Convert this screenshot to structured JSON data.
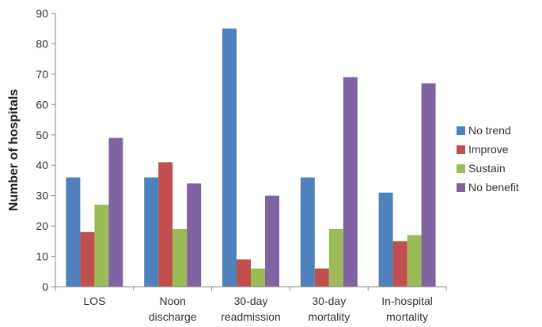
{
  "chart_data": {
    "type": "bar",
    "title": "",
    "xlabel": "",
    "ylabel": "Number of hospitals",
    "ylim": [
      0,
      90
    ],
    "yticks": [
      0,
      10,
      20,
      30,
      40,
      50,
      60,
      70,
      80,
      90
    ],
    "grid": false,
    "legend_position": "right",
    "categories": [
      [
        "LOS"
      ],
      [
        "Noon",
        "discharge"
      ],
      [
        "30-day",
        "readmission"
      ],
      [
        "30-day",
        "mortality"
      ],
      [
        "In-hospital",
        "mortality"
      ]
    ],
    "series": [
      {
        "name": "No trend",
        "color": "#4F81BD",
        "values": [
          36,
          36,
          85,
          36,
          31
        ]
      },
      {
        "name": "Improve",
        "color": "#C0504D",
        "values": [
          18,
          41,
          9,
          6,
          15
        ]
      },
      {
        "name": "Sustain",
        "color": "#9BBB59",
        "values": [
          27,
          19,
          6,
          19,
          17
        ]
      },
      {
        "name": "No benefit",
        "color": "#8064A2",
        "values": [
          49,
          34,
          30,
          69,
          67
        ]
      }
    ]
  }
}
